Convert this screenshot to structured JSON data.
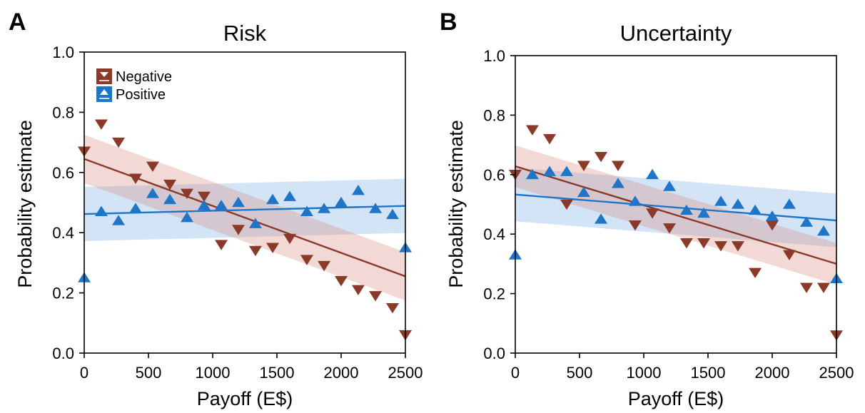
{
  "colors": {
    "negative": "#8B3A2A",
    "negative_band": "#F2D9D5",
    "positive": "#1F75C8",
    "positive_band": "#CFE3F4",
    "overlap_band": "#DCD7E0"
  },
  "chart_data": [
    {
      "type": "scatter",
      "panel_letter": "A",
      "title": "Risk",
      "xlabel": "Payoff (E$)",
      "ylabel": "Probability estimate",
      "xlim": [
        0,
        2500
      ],
      "ylim": [
        0,
        1
      ],
      "xticks": [
        0,
        500,
        1000,
        1500,
        2000,
        2500
      ],
      "yticks": [
        0.0,
        0.2,
        0.4,
        0.6,
        0.8,
        1.0
      ],
      "ytick_labels": [
        "0.0",
        "0.2",
        "0.4",
        "0.6",
        "0.8",
        "1.0"
      ],
      "legend_position": "top-left",
      "series": [
        {
          "name": "Negative",
          "marker": "triangle-down",
          "x": [
            0,
            133,
            267,
            400,
            533,
            667,
            800,
            933,
            1067,
            1200,
            1333,
            1467,
            1600,
            1733,
            1867,
            2000,
            2133,
            2267,
            2400,
            2500
          ],
          "y": [
            0.67,
            0.76,
            0.7,
            0.58,
            0.62,
            0.56,
            0.53,
            0.52,
            0.36,
            0.41,
            0.34,
            0.35,
            0.38,
            0.31,
            0.29,
            0.24,
            0.21,
            0.19,
            0.15,
            0.06
          ],
          "fit": [
            0.645,
            0.255
          ],
          "band_width": [
            0.08,
            0.08
          ]
        },
        {
          "name": "Positive",
          "marker": "triangle-up",
          "x": [
            0,
            133,
            267,
            400,
            533,
            667,
            800,
            933,
            1067,
            1200,
            1333,
            1467,
            1600,
            1733,
            1867,
            2000,
            2133,
            2267,
            2400,
            2500
          ],
          "y": [
            0.25,
            0.47,
            0.44,
            0.48,
            0.53,
            0.51,
            0.45,
            0.49,
            0.49,
            0.5,
            0.43,
            0.51,
            0.52,
            0.47,
            0.48,
            0.5,
            0.54,
            0.48,
            0.46,
            0.35
          ],
          "fit": [
            0.462,
            0.489
          ],
          "band_width": [
            0.09,
            0.09
          ]
        }
      ]
    },
    {
      "type": "scatter",
      "panel_letter": "B",
      "title": "Uncertainty",
      "xlabel": "Payoff (E$)",
      "ylabel": "Probability estimate",
      "xlim": [
        0,
        2500
      ],
      "ylim": [
        0,
        1
      ],
      "xticks": [
        0,
        500,
        1000,
        1500,
        2000,
        2500
      ],
      "yticks": [
        0.0,
        0.2,
        0.4,
        0.6,
        0.8,
        1.0
      ],
      "ytick_labels": [
        "0.0",
        "0.2",
        "0.4",
        "0.6",
        "0.8",
        "1.0"
      ],
      "series": [
        {
          "name": "Negative",
          "marker": "triangle-down",
          "x": [
            0,
            133,
            267,
            400,
            533,
            667,
            800,
            933,
            1067,
            1200,
            1333,
            1467,
            1600,
            1733,
            1867,
            2000,
            2133,
            2267,
            2400,
            2500
          ],
          "y": [
            0.6,
            0.75,
            0.72,
            0.5,
            0.63,
            0.66,
            0.63,
            0.43,
            0.47,
            0.42,
            0.37,
            0.37,
            0.36,
            0.36,
            0.27,
            0.43,
            0.33,
            0.22,
            0.22,
            0.06
          ],
          "fit": [
            0.628,
            0.3
          ],
          "band_width": [
            0.07,
            0.07
          ]
        },
        {
          "name": "Positive",
          "marker": "triangle-up",
          "x": [
            0,
            133,
            267,
            400,
            533,
            667,
            800,
            933,
            1067,
            1200,
            1333,
            1467,
            1600,
            1733,
            1867,
            2000,
            2133,
            2267,
            2400,
            2500
          ],
          "y": [
            0.33,
            0.6,
            0.61,
            0.61,
            0.54,
            0.45,
            0.57,
            0.51,
            0.6,
            0.56,
            0.48,
            0.47,
            0.51,
            0.5,
            0.48,
            0.46,
            0.5,
            0.44,
            0.41,
            0.25
          ],
          "fit": [
            0.533,
            0.446
          ],
          "band_width": [
            0.09,
            0.09
          ]
        }
      ]
    }
  ]
}
